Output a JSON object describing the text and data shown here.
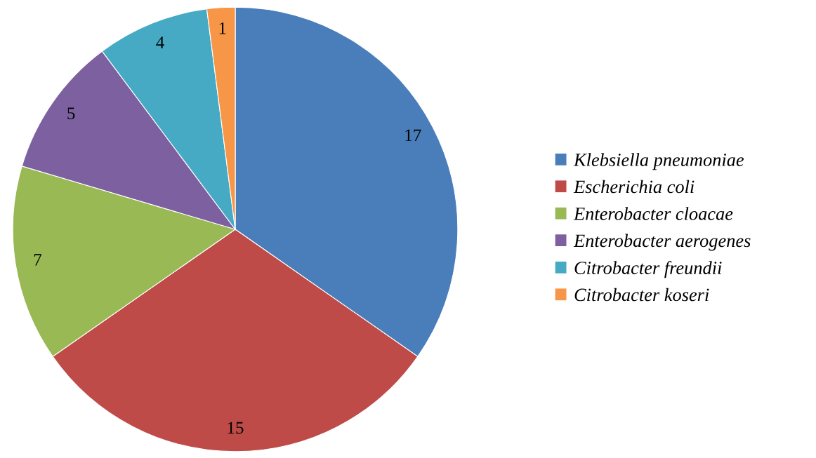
{
  "chart_data": {
    "type": "pie",
    "categories": [
      "Klebsiella pneumoniae",
      "Escherichia coli",
      "Enterobacter cloacae",
      "Enterobacter aerogenes",
      "Citrobacter freundii",
      "Citrobacter koseri"
    ],
    "values": [
      17,
      15,
      7,
      5,
      4,
      1
    ],
    "colors": [
      "#4a7ebb",
      "#be4b48",
      "#98b954",
      "#7d60a0",
      "#46aac5",
      "#f79646"
    ],
    "data_labels": true,
    "legend": "right"
  }
}
